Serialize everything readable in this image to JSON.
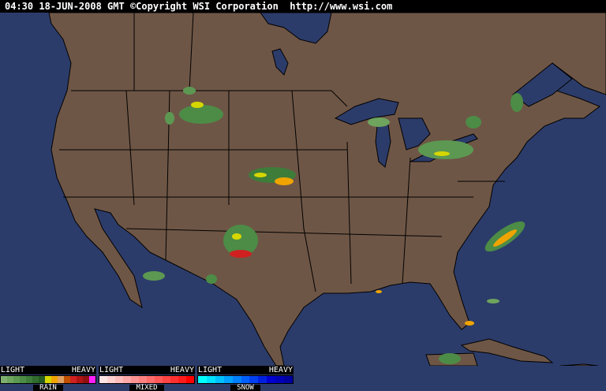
{
  "header": {
    "timestamp": "04:30 18-JUN-2008 GMT",
    "copyright": "©Copyright WSI Corporation",
    "url": "http://www.wsi.com"
  },
  "colors": {
    "ocean": "#2c3c6a",
    "land": "#6e5646",
    "border": "#000000",
    "lake": "#2c3c6a"
  },
  "map": {
    "type": "weather radar",
    "region": "North America"
  },
  "legend": [
    {
      "name": "RAIN",
      "light": "LIGHT",
      "heavy": "HEAVY",
      "colors": [
        "#80b070",
        "#6ea45e",
        "#5c9852",
        "#4c8c46",
        "#3e7c3a",
        "#306c2e",
        "#245c22",
        "#d6d600",
        "#f0a400",
        "#e0a060",
        "#c05000",
        "#d02020",
        "#b01414",
        "#901010",
        "#ff20ff"
      ]
    },
    {
      "name": "MIXED",
      "light": "LIGHT",
      "heavy": "HEAVY",
      "colors": [
        "#ffe4e4",
        "#ffd0d0",
        "#ffbcbc",
        "#ffa8a8",
        "#ff9494",
        "#ff8080",
        "#ff6c6c",
        "#ff5858",
        "#ff4444",
        "#ff3030",
        "#ff1c1c",
        "#ff0000"
      ]
    },
    {
      "name": "SNOW",
      "light": "LIGHT",
      "heavy": "HEAVY",
      "colors": [
        "#00ffff",
        "#00e0ff",
        "#00c0ff",
        "#00a0ff",
        "#0080ff",
        "#0060ff",
        "#0040f0",
        "#0020e0",
        "#0000d0",
        "#0000b8",
        "#0000a0"
      ]
    }
  ]
}
